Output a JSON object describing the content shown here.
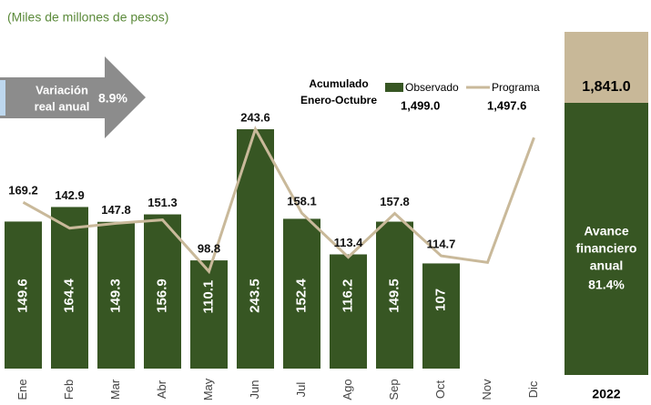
{
  "chart_data": {
    "type": "bar",
    "subtitle": "(Miles de millones de pesos)",
    "categories": [
      "Ene",
      "Feb",
      "Mar",
      "Abr",
      "May",
      "Jun",
      "Jul",
      "Ago",
      "Sep",
      "Oct",
      "Nov",
      "Dic"
    ],
    "series": [
      {
        "name": "Observado",
        "color": "#375623",
        "type": "bar",
        "values": [
          149.6,
          164.4,
          149.3,
          156.9,
          110.1,
          243.5,
          152.4,
          116.2,
          149.5,
          107.0,
          null,
          null
        ]
      },
      {
        "name": "Programa",
        "color": "#c9b99a",
        "type": "line",
        "values": [
          169.2,
          142.9,
          147.8,
          151.3,
          98.8,
          243.6,
          158.1,
          113.4,
          157.8,
          114.7,
          108,
          235
        ],
        "value_labels": [
          "169.2",
          "142.9",
          "147.8",
          "151.3",
          "98.8",
          "243.6",
          "158.1",
          "113.4",
          "157.8",
          "114.7",
          null,
          null
        ]
      }
    ],
    "ylim": [
      0,
      375
    ],
    "variation": {
      "lines": [
        "Variación",
        "real anual"
      ],
      "value": "8.9%"
    },
    "accumulated": {
      "lines": [
        "Acumulado",
        "Enero-Octubre"
      ],
      "values": [
        "1,499.0",
        "1,497.6"
      ]
    },
    "annual": {
      "label": "2022",
      "programa": "1,841.0",
      "avance_lines": [
        "Avance",
        "financiero",
        "anual",
        "81.4%"
      ]
    }
  }
}
